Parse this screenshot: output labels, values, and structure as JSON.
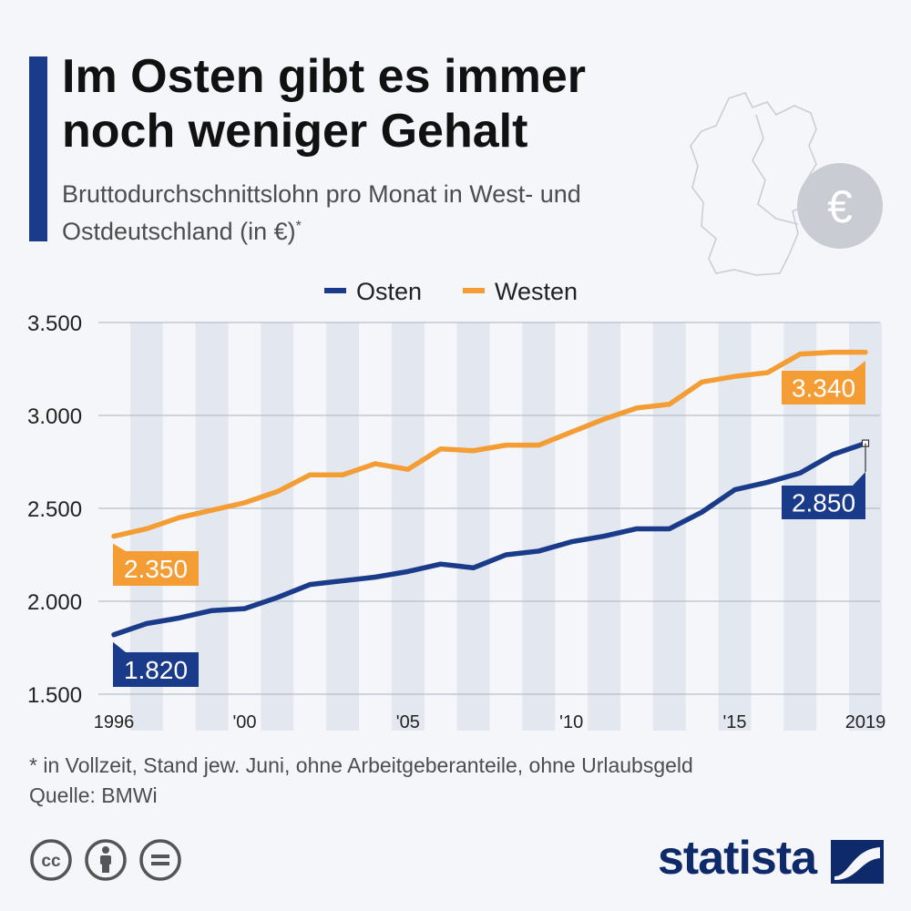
{
  "header": {
    "title": "Im Osten gibt es immer noch weniger Gehalt",
    "subtitle": "Bruttodurchschnittslohn pro Monat in West- und Ostdeutschland (in €)",
    "subtitle_mark": "*"
  },
  "icons": {
    "map": "germany-map-icon",
    "currency": "euro-icon"
  },
  "euro_symbol": "€",
  "chart_data": {
    "type": "line",
    "title": "Im Osten gibt es immer noch weniger Gehalt",
    "ylim": [
      1500,
      3500
    ],
    "yticks": [
      1500,
      2000,
      2500,
      3000,
      3500
    ],
    "ytick_labels": [
      "1.500",
      "2.000",
      "2.500",
      "3.000",
      "3.500"
    ],
    "x": [
      1996,
      1997,
      1998,
      1999,
      2000,
      2001,
      2002,
      2003,
      2004,
      2005,
      2006,
      2007,
      2008,
      2009,
      2010,
      2011,
      2012,
      2013,
      2014,
      2015,
      2016,
      2017,
      2018,
      2019
    ],
    "xtick_positions": [
      1996,
      2000,
      2005,
      2010,
      2015,
      2019
    ],
    "xtick_labels": [
      "1996",
      "'00",
      "'05",
      "'10",
      "'15",
      "2019"
    ],
    "legend_position": "top-center",
    "series": [
      {
        "name": "Osten",
        "color": "#1a3a8a",
        "values": [
          1820,
          1880,
          1910,
          1950,
          1960,
          2020,
          2090,
          2110,
          2130,
          2160,
          2200,
          2180,
          2250,
          2270,
          2320,
          2350,
          2390,
          2390,
          2480,
          2600,
          2640,
          2690,
          2790,
          2850
        ],
        "start_label": "1.820",
        "end_label": "2.850"
      },
      {
        "name": "Westen",
        "color": "#f39d34",
        "values": [
          2350,
          2390,
          2450,
          2490,
          2530,
          2590,
          2680,
          2680,
          2740,
          2710,
          2820,
          2810,
          2840,
          2840,
          2910,
          2980,
          3040,
          3060,
          3180,
          3210,
          3230,
          3330,
          3340,
          3340
        ],
        "start_label": "2.350",
        "end_label": "3.340"
      }
    ]
  },
  "footer": {
    "note": "* in Vollzeit, Stand jew. Juni, ohne Arbeitgeberanteile, ohne Urlaubsgeld",
    "source": "Quelle: BMWi",
    "brand": "statista",
    "license_icons": [
      "cc-icon",
      "by-icon",
      "nd-icon"
    ]
  }
}
